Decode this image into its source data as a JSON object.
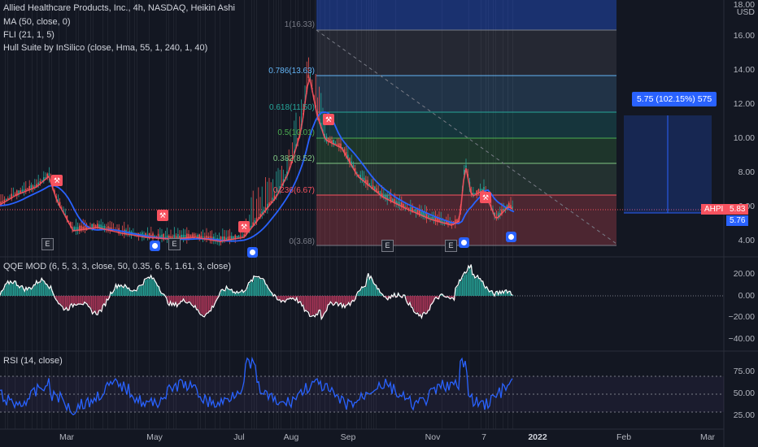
{
  "legend": {
    "title": "Allied Healthcare Products, Inc., 4h, NASDAQ, Heikin Ashi",
    "ma": "MA (50, close, 0)",
    "fli": "FLI (21, 1, 5)",
    "hull": "Hull Suite by InSilico (close, Hma, 55, 1, 240, 1, 40)",
    "qqe": "QQE MOD (6, 5, 3, 3, close, 50, 0.35, 6, 5, 1.61, 3, close)",
    "rsi": "RSI (14, close)"
  },
  "price_axis": {
    "currency": "USD",
    "ticks": [
      "18.00",
      "16.00",
      "14.00",
      "12.00",
      "10.00",
      "8.00",
      "6.00",
      "4.00"
    ],
    "symbol_tag": "AHPI",
    "last_price": "5.83",
    "ma_price": "5.76"
  },
  "qqe_axis": {
    "ticks": [
      "20.00",
      "0.00",
      "−20.00",
      "−40.00"
    ]
  },
  "rsi_axis": {
    "ticks": [
      "75.00",
      "50.00",
      "25.00"
    ]
  },
  "time_axis": {
    "labels": [
      {
        "text": "Mar",
        "bold": false
      },
      {
        "text": "May",
        "bold": false
      },
      {
        "text": "Jul",
        "bold": false
      },
      {
        "text": "Aug",
        "bold": false
      },
      {
        "text": "Sep",
        "bold": false
      },
      {
        "text": "Nov",
        "bold": false
      },
      {
        "text": "7",
        "bold": false
      },
      {
        "text": "2022",
        "bold": true
      },
      {
        "text": "Feb",
        "bold": false
      },
      {
        "text": "Mar",
        "bold": false
      }
    ]
  },
  "fib": [
    {
      "label": "1(16.33)",
      "color": "#787b86"
    },
    {
      "label": "0.786(13.63)",
      "color": "#64b5f6"
    },
    {
      "label": "0.618(11.50)",
      "color": "#26a69a"
    },
    {
      "label": "0.5(10.01)",
      "color": "#4caf50"
    },
    {
      "label": "0.382(8.52)",
      "color": "#81c784"
    },
    {
      "label": "0.236(6.67)",
      "color": "#f7525f"
    },
    {
      "label": "0(3.68)",
      "color": "#787b86"
    }
  ],
  "measure_label": "5.75 (102.15%) 575",
  "earnings_badge": "E",
  "colors": {
    "background": "#131722",
    "candle_up": "#26a69a",
    "candle_down": "#ef5350",
    "ma_line": "#2962ff",
    "fli_line": "#f7525f",
    "rsi_line": "#2962ff",
    "measure": "#2962ff"
  }
}
